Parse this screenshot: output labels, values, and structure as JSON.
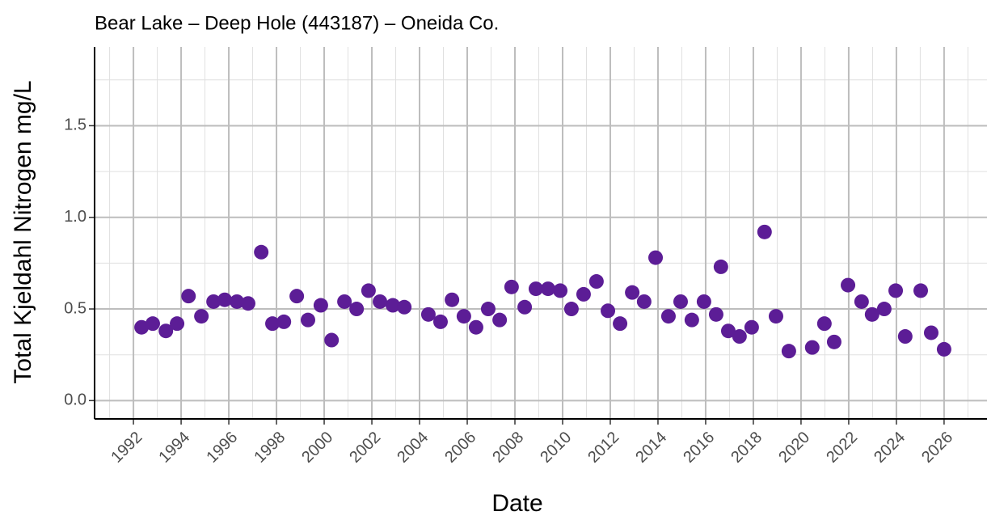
{
  "chart_data": {
    "type": "scatter",
    "title": "Bear Lake – Deep Hole (443187) – Oneida Co.",
    "x_label": "Date",
    "y_label": "Total Kjeldahl Nitrogen mg/L",
    "color": "#5c1d96",
    "grid": true,
    "xlim": [
      1990.37,
      2027.8
    ],
    "ylim": [
      -0.1,
      1.93
    ],
    "xticks": [
      1992,
      1994,
      1996,
      1998,
      2000,
      2002,
      2004,
      2006,
      2008,
      2010,
      2012,
      2014,
      2016,
      2018,
      2020,
      2022,
      2024,
      2026
    ],
    "yticks": [
      {
        "value": 0,
        "label": "0.0"
      },
      0.5,
      {
        "value": 1,
        "label": "1.0"
      },
      1.5
    ],
    "xminor": [
      1991,
      1993,
      1995,
      1997,
      1999,
      2001,
      2003,
      2005,
      2007,
      2009,
      2011,
      2013,
      2015,
      2017,
      2019,
      2021,
      2023,
      2025,
      2027
    ],
    "yminor": [
      0.25,
      0.75,
      1.25,
      1.75
    ],
    "x": [
      1992.34,
      1992.81,
      1993.36,
      1993.83,
      1994.31,
      1994.85,
      1995.36,
      1995.83,
      1996.34,
      1996.81,
      1997.36,
      1997.83,
      1998.31,
      1998.85,
      1999.32,
      1999.86,
      2000.31,
      2000.85,
      2001.36,
      2001.86,
      2002.34,
      2002.88,
      2003.36,
      2004.37,
      2004.88,
      2005.36,
      2005.86,
      2006.37,
      2006.88,
      2007.36,
      2007.86,
      2008.41,
      2008.88,
      2009.39,
      2009.9,
      2010.37,
      2010.88,
      2011.42,
      2011.9,
      2012.41,
      2012.92,
      2013.42,
      2013.9,
      2014.44,
      2014.95,
      2015.42,
      2015.93,
      2016.44,
      2016.64,
      2016.95,
      2017.42,
      2017.93,
      2018.47,
      2018.95,
      2019.49,
      2020.47,
      2020.98,
      2021.39,
      2021.97,
      2022.54,
      2022.98,
      2023.49,
      2023.97,
      2024.37,
      2025.02,
      2025.46,
      2026.0
    ],
    "values": [
      0.4,
      0.42,
      0.38,
      0.42,
      0.57,
      0.46,
      0.54,
      0.55,
      0.54,
      0.53,
      0.81,
      0.42,
      0.43,
      0.57,
      0.44,
      0.52,
      0.33,
      0.54,
      0.5,
      0.6,
      0.54,
      0.52,
      0.51,
      0.47,
      0.43,
      0.55,
      0.46,
      0.4,
      0.5,
      0.44,
      0.62,
      0.51,
      0.61,
      0.61,
      0.6,
      0.5,
      0.58,
      0.65,
      0.49,
      0.42,
      0.59,
      0.54,
      0.78,
      0.46,
      0.54,
      0.44,
      0.54,
      0.47,
      0.73,
      0.38,
      0.35,
      0.4,
      0.92,
      0.46,
      0.27,
      0.29,
      0.42,
      0.32,
      0.63,
      0.54,
      0.47,
      0.5,
      0.6,
      0.35,
      0.6,
      0.37,
      0.28
    ]
  }
}
